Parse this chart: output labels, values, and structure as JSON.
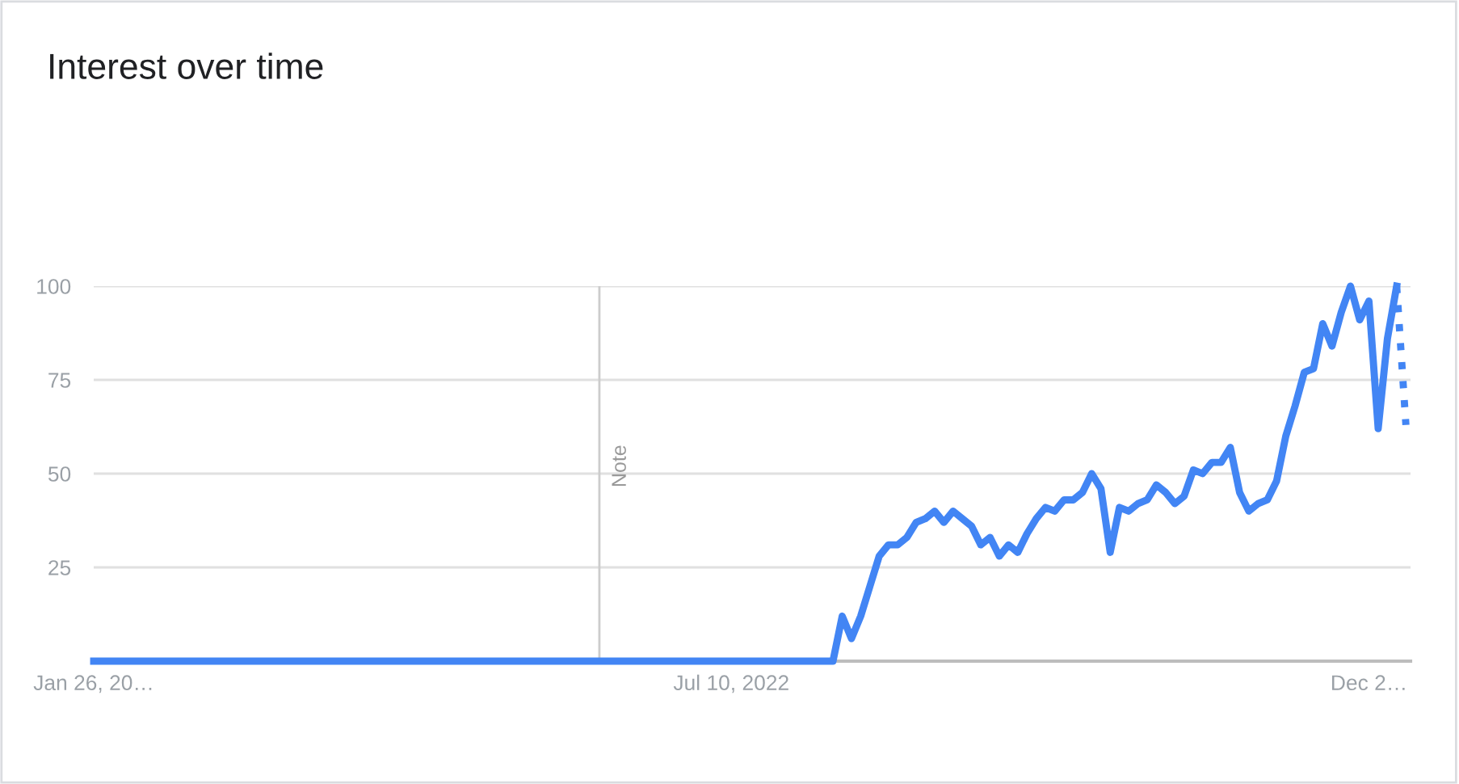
{
  "chart_data": {
    "type": "line",
    "title": "Interest over time",
    "categories": [
      "Jan 26, 20…",
      null,
      null,
      null,
      null,
      null,
      null,
      null,
      null,
      null,
      null,
      null,
      null,
      null,
      null,
      null,
      null,
      null,
      null,
      null,
      null,
      null,
      null,
      null,
      null,
      null,
      null,
      null,
      null,
      null,
      null,
      null,
      null,
      null,
      null,
      null,
      null,
      null,
      null,
      null,
      null,
      null,
      null,
      null,
      null,
      null,
      null,
      null,
      null,
      null,
      null,
      null,
      null,
      null,
      null,
      null,
      null,
      null,
      null,
      null,
      null,
      null,
      null,
      null,
      null,
      null,
      null,
      null,
      null,
      "Jul 10, 2022",
      null,
      null,
      null,
      null,
      null,
      null,
      null,
      null,
      null,
      null,
      null,
      null,
      null,
      null,
      null,
      null,
      null,
      null,
      null,
      null,
      null,
      null,
      null,
      null,
      null,
      null,
      null,
      null,
      null,
      null,
      null,
      null,
      null,
      null,
      null,
      null,
      null,
      null,
      null,
      null,
      null,
      null,
      null,
      null,
      null,
      null,
      null,
      null,
      null,
      null,
      null,
      null,
      null,
      null,
      null,
      null,
      null,
      null,
      null,
      null,
      null,
      null,
      null,
      null,
      null,
      null,
      null,
      null,
      "Dec 2…",
      null,
      null,
      null,
      null
    ],
    "ylim": [
      0,
      100
    ],
    "yticks": [
      {
        "value": 0,
        "label": null
      },
      25,
      50,
      75,
      100
    ],
    "grid": "y",
    "legend": false,
    "annotations": [
      "Note"
    ],
    "series": [
      {
        "color": "#4285f4",
        "line_style": "solid",
        "values": [
          0,
          0,
          0,
          0,
          0,
          0,
          0,
          0,
          0,
          0,
          0,
          0,
          0,
          0,
          0,
          0,
          0,
          0,
          0,
          0,
          0,
          0,
          0,
          0,
          0,
          0,
          0,
          0,
          0,
          0,
          0,
          0,
          0,
          0,
          0,
          0,
          0,
          0,
          0,
          0,
          0,
          0,
          0,
          0,
          0,
          0,
          0,
          0,
          0,
          0,
          0,
          0,
          0,
          0,
          0,
          0,
          0,
          0,
          0,
          0,
          0,
          0,
          0,
          0,
          0,
          0,
          0,
          0,
          0,
          0,
          0,
          0,
          0,
          0,
          0,
          0,
          0,
          0,
          0,
          0,
          0,
          12,
          6,
          12,
          20,
          28,
          31,
          31,
          33,
          37,
          38,
          40,
          37,
          40,
          38,
          36,
          31,
          33,
          28,
          31,
          29,
          34,
          38,
          41,
          40,
          43,
          43,
          45,
          50,
          46,
          29,
          41,
          40,
          42,
          43,
          47,
          45,
          42,
          44,
          51,
          50,
          53,
          53,
          57,
          45,
          40,
          42,
          43,
          48,
          60,
          68,
          77,
          78,
          90,
          84,
          93,
          100,
          91,
          96,
          62,
          86,
          100,
          null
        ]
      },
      {
        "color": "#4285f4",
        "line_style": "dotted",
        "values": [
          null,
          null,
          null,
          null,
          null,
          null,
          null,
          null,
          null,
          null,
          null,
          null,
          null,
          null,
          null,
          null,
          null,
          null,
          null,
          null,
          null,
          null,
          null,
          null,
          null,
          null,
          null,
          null,
          null,
          null,
          null,
          null,
          null,
          null,
          null,
          null,
          null,
          null,
          null,
          null,
          null,
          null,
          null,
          null,
          null,
          null,
          null,
          null,
          null,
          null,
          null,
          null,
          null,
          null,
          null,
          null,
          null,
          null,
          null,
          null,
          null,
          null,
          null,
          null,
          null,
          null,
          null,
          null,
          null,
          null,
          null,
          null,
          null,
          null,
          null,
          null,
          null,
          null,
          null,
          null,
          null,
          null,
          null,
          null,
          null,
          null,
          null,
          null,
          null,
          null,
          null,
          null,
          null,
          null,
          null,
          null,
          null,
          null,
          null,
          null,
          null,
          null,
          null,
          null,
          null,
          null,
          null,
          null,
          null,
          null,
          null,
          null,
          null,
          null,
          null,
          null,
          null,
          null,
          null,
          null,
          null,
          null,
          null,
          null,
          null,
          null,
          null,
          null,
          null,
          null,
          null,
          null,
          null,
          null,
          null,
          null,
          null,
          null,
          null,
          null,
          null,
          100,
          63
        ]
      }
    ]
  }
}
